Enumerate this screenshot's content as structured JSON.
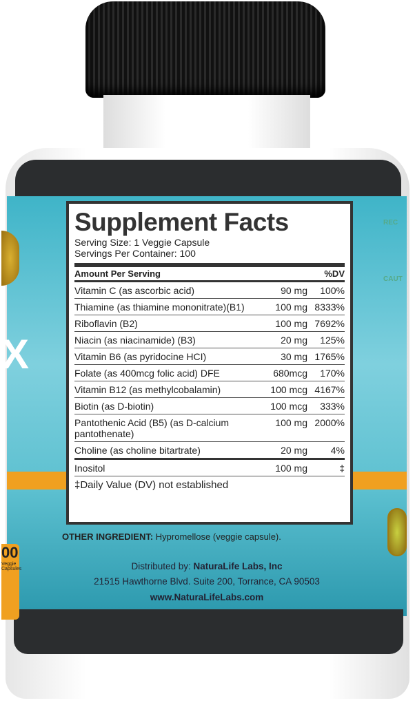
{
  "facts": {
    "title": "Supplement Facts",
    "serving_size": "Serving Size: 1 Veggie Capsule",
    "servings_per_container": "Servings Per Container: 100",
    "header_amount": "Amount Per Serving",
    "header_dv": "%DV",
    "rows": [
      {
        "name": "Vitamin C (as ascorbic acid)",
        "amount": "90 mg",
        "dv": "100%"
      },
      {
        "name": "Thiamine (as thiamine mononitrate)(B1)",
        "amount": "100 mg",
        "dv": "8333%"
      },
      {
        "name": "Riboflavin (B2)",
        "amount": "100 mg",
        "dv": "7692%"
      },
      {
        "name": "Niacin (as niacinamide) (B3)",
        "amount": "20 mg",
        "dv": "125%"
      },
      {
        "name": "Vitamin B6 (as pyridocine HCI)",
        "amount": "30 mg",
        "dv": "1765%"
      },
      {
        "name": "Folate (as 400mcg folic acid) DFE",
        "amount": "680mcg",
        "dv": "170%"
      },
      {
        "name": "Vitamin B12 (as methylcobalamin)",
        "amount": "100 mcg",
        "dv": "4167%"
      },
      {
        "name": "Biotin (as D-biotin)",
        "amount": "100 mcg",
        "dv": "333%"
      },
      {
        "name": "Pantothenic Acid (B5) (as D-calcium pantothenate)",
        "amount": "100 mg",
        "dv": "2000%"
      },
      {
        "name": "Choline (as choline bitartrate)",
        "amount": "20 mg",
        "dv": "4%"
      },
      {
        "name": "Inositol",
        "amount": "100 mg",
        "dv": "‡"
      }
    ],
    "footnote": "‡Daily Value (DV) not established"
  },
  "other_ingredient": {
    "label": "OTHER INGREDIENT:",
    "value": " Hypromellose (veggie capsule)."
  },
  "distributor": {
    "prefix": "Distributed by: ",
    "name": "NaturaLife Labs, Inc",
    "address": "21515 Hawthorne Blvd. Suite 200, Torrance, CA 90503",
    "website": "www.NaturaLifeLabs.com"
  },
  "side_left": {
    "letter": "X",
    "count": "00",
    "caption": "Veggie Capsules"
  },
  "side_right": {
    "rec": "REC",
    "cau": "CAUT"
  },
  "colors": {
    "label_teal": "#5cc0d0",
    "band": "#2b2d2f",
    "accent_orange": "#f0a020"
  }
}
